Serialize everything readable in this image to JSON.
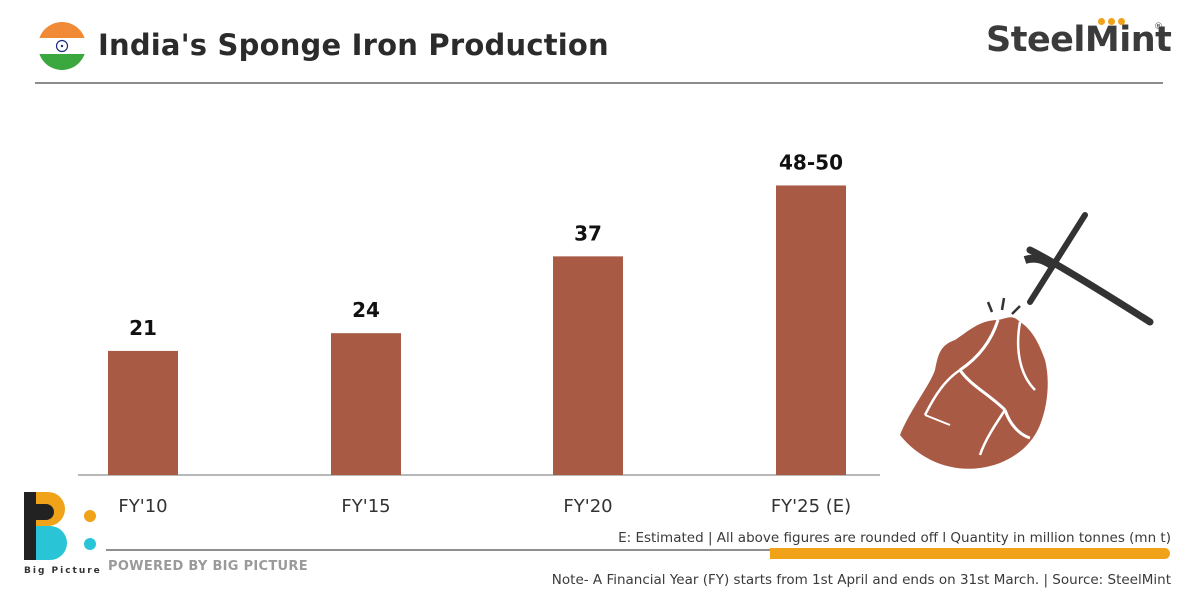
{
  "header": {
    "title": "India's Sponge Iron Production",
    "brand": "SteelMint",
    "brand_reg": "®"
  },
  "colors": {
    "bar": "#a85a45",
    "accent": "#f0a218",
    "flag_saffron": "#f08a36",
    "flag_green": "#3aa83f",
    "chakra": "#1a2f7a"
  },
  "chart_data": {
    "type": "bar",
    "categories": [
      "FY'10",
      "FY'15",
      "FY'20",
      "FY'25 (E)"
    ],
    "values": [
      21,
      24,
      37,
      49
    ],
    "value_labels": [
      "21",
      "24",
      "37",
      "48-50"
    ],
    "ylim": [
      0,
      55
    ],
    "grid": false,
    "legend": "none"
  },
  "footer": {
    "logo_label": "Big Picture",
    "powered_by": "POWERED BY BIG PICTURE",
    "note_estimate": "E: Estimated  |  All above figures are rounded off  l  Quantity in million tonnes (mn t)",
    "note_fy": "Note- A Financial Year (FY) starts from 1st April and ends on 31st March.  |  Source: SteelMint"
  },
  "icons": {
    "flag": "india-flag-icon",
    "illustration": "pickaxe-ore-icon",
    "logo": "big-picture-logo-icon"
  }
}
